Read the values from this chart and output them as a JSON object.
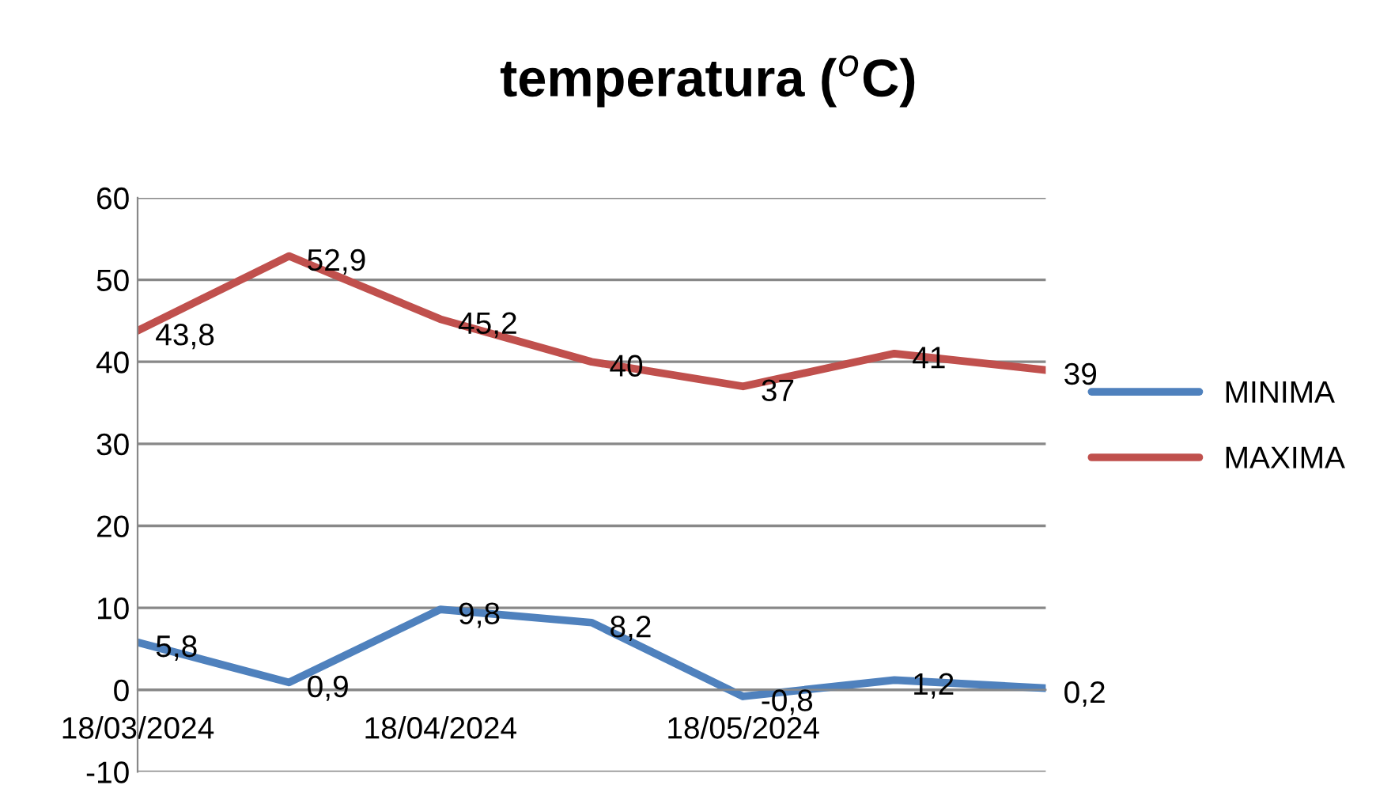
{
  "chart_data": {
    "type": "line",
    "title": "temperatura ($^{o}$C)",
    "categories": [
      "18/03/2024",
      null,
      "18/04/2024",
      null,
      "18/05/2024",
      null,
      null
    ],
    "series": [
      {
        "name": "MINIMA",
        "color": "#4f81bd",
        "values": [
          5.8,
          0.9,
          9.8,
          8.2,
          -0.8,
          1.2,
          0.2
        ],
        "value_labels": [
          "5,8",
          "0,9",
          "9,8",
          "8,2",
          "-0,8",
          "1,2",
          "0,2"
        ]
      },
      {
        "name": "MAXIMA",
        "color": "#c0504d",
        "values": [
          43.8,
          52.9,
          45.2,
          40,
          37,
          41,
          39
        ],
        "value_labels": [
          "43,8",
          "52,9",
          "45,2",
          "40",
          "37",
          "41",
          "39"
        ]
      }
    ],
    "ylim": [
      -10,
      60
    ],
    "yticks": [
      -10,
      0,
      10,
      20,
      30,
      40,
      50,
      60
    ],
    "grid": "y",
    "legend": "right",
    "marker": "none",
    "line_style": "solid"
  }
}
